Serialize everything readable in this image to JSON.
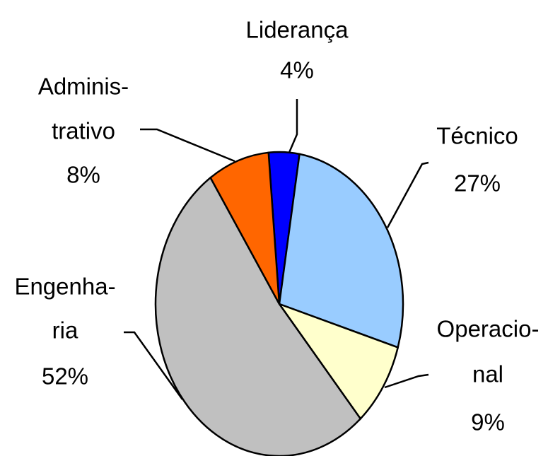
{
  "chart_data": {
    "type": "pie",
    "categories": [
      [
        "Liderança"
      ],
      [
        "Técnico"
      ],
      [
        "Operacio-",
        "nal"
      ],
      [
        "Engenha-",
        "ria"
      ],
      [
        "Adminis-",
        "trativo"
      ]
    ],
    "values": [
      4,
      27,
      9,
      52,
      8
    ],
    "value_labels": [
      "4%",
      "27%",
      "9%",
      "52%",
      "8%"
    ],
    "colors": [
      "#0000ff",
      "#99ccff",
      "#ffffcc",
      "#c0c0c0",
      "#ff6600"
    ]
  }
}
